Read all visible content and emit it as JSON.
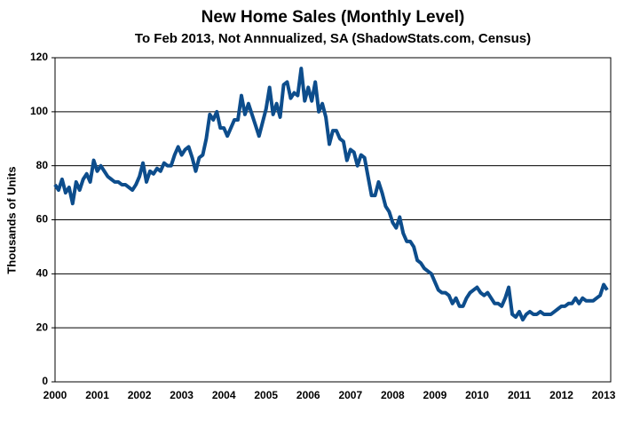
{
  "chart_data": {
    "type": "line",
    "title": "New Home Sales (Monthly Level)",
    "subtitle": "To Feb 2013, Not Annnualized, SA (ShadowStats.com, Census)",
    "y_label": "Thousands of Units",
    "color": "#0d4d8c",
    "grid": true,
    "ylim": [
      0,
      120
    ],
    "yticks": [
      0,
      20,
      40,
      60,
      80,
      100,
      120
    ],
    "categories": [
      "2000",
      null,
      null,
      null,
      null,
      null,
      null,
      null,
      null,
      null,
      null,
      null,
      "2001",
      null,
      null,
      null,
      null,
      null,
      null,
      null,
      null,
      null,
      null,
      null,
      "2002",
      null,
      null,
      null,
      null,
      null,
      null,
      null,
      null,
      null,
      null,
      null,
      "2003",
      null,
      null,
      null,
      null,
      null,
      null,
      null,
      null,
      null,
      null,
      null,
      "2004",
      null,
      null,
      null,
      null,
      null,
      null,
      null,
      null,
      null,
      null,
      null,
      "2005",
      null,
      null,
      null,
      null,
      null,
      null,
      null,
      null,
      null,
      null,
      null,
      "2006",
      null,
      null,
      null,
      null,
      null,
      null,
      null,
      null,
      null,
      null,
      null,
      "2007",
      null,
      null,
      null,
      null,
      null,
      null,
      null,
      null,
      null,
      null,
      null,
      "2008",
      null,
      null,
      null,
      null,
      null,
      null,
      null,
      null,
      null,
      null,
      null,
      "2009",
      null,
      null,
      null,
      null,
      null,
      null,
      null,
      null,
      null,
      null,
      null,
      "2010",
      null,
      null,
      null,
      null,
      null,
      null,
      null,
      null,
      null,
      null,
      null,
      "2011",
      null,
      null,
      null,
      null,
      null,
      null,
      null,
      null,
      null,
      null,
      null,
      "2012",
      null,
      null,
      null,
      null,
      null,
      null,
      null,
      null,
      null,
      null,
      null,
      "2013",
      null
    ],
    "values": [
      73,
      71,
      75,
      70,
      72,
      66,
      74,
      71,
      75,
      77,
      74,
      82,
      78,
      80,
      78,
      76,
      75,
      74,
      74,
      73,
      73,
      72,
      71,
      73,
      76,
      81,
      74,
      78,
      77,
      79,
      78,
      81,
      80,
      80,
      84,
      87,
      84,
      86,
      87,
      83,
      78,
      83,
      84,
      90,
      99,
      97,
      100,
      94,
      94,
      91,
      94,
      97,
      97,
      106,
      99,
      103,
      99,
      95,
      91,
      96,
      101,
      109,
      99,
      103,
      98,
      110,
      111,
      105,
      107,
      106,
      116,
      104,
      109,
      104,
      111,
      100,
      103,
      98,
      88,
      93,
      93,
      90,
      89,
      82,
      86,
      85,
      80,
      84,
      83,
      76,
      69,
      69,
      74,
      70,
      65,
      63,
      59,
      57,
      61,
      55,
      52,
      52,
      50,
      45,
      44,
      42,
      41,
      40,
      37,
      34,
      33,
      33,
      32,
      29,
      31,
      28,
      28,
      31,
      33,
      34,
      35,
      33,
      32,
      33,
      31,
      29,
      29,
      28,
      31,
      35,
      25,
      24,
      26,
      23,
      25,
      26,
      25,
      25,
      26,
      25,
      25,
      25,
      26,
      27,
      28,
      28,
      29,
      29,
      31,
      29,
      31,
      30,
      30,
      30,
      31,
      32,
      36,
      34
    ]
  }
}
